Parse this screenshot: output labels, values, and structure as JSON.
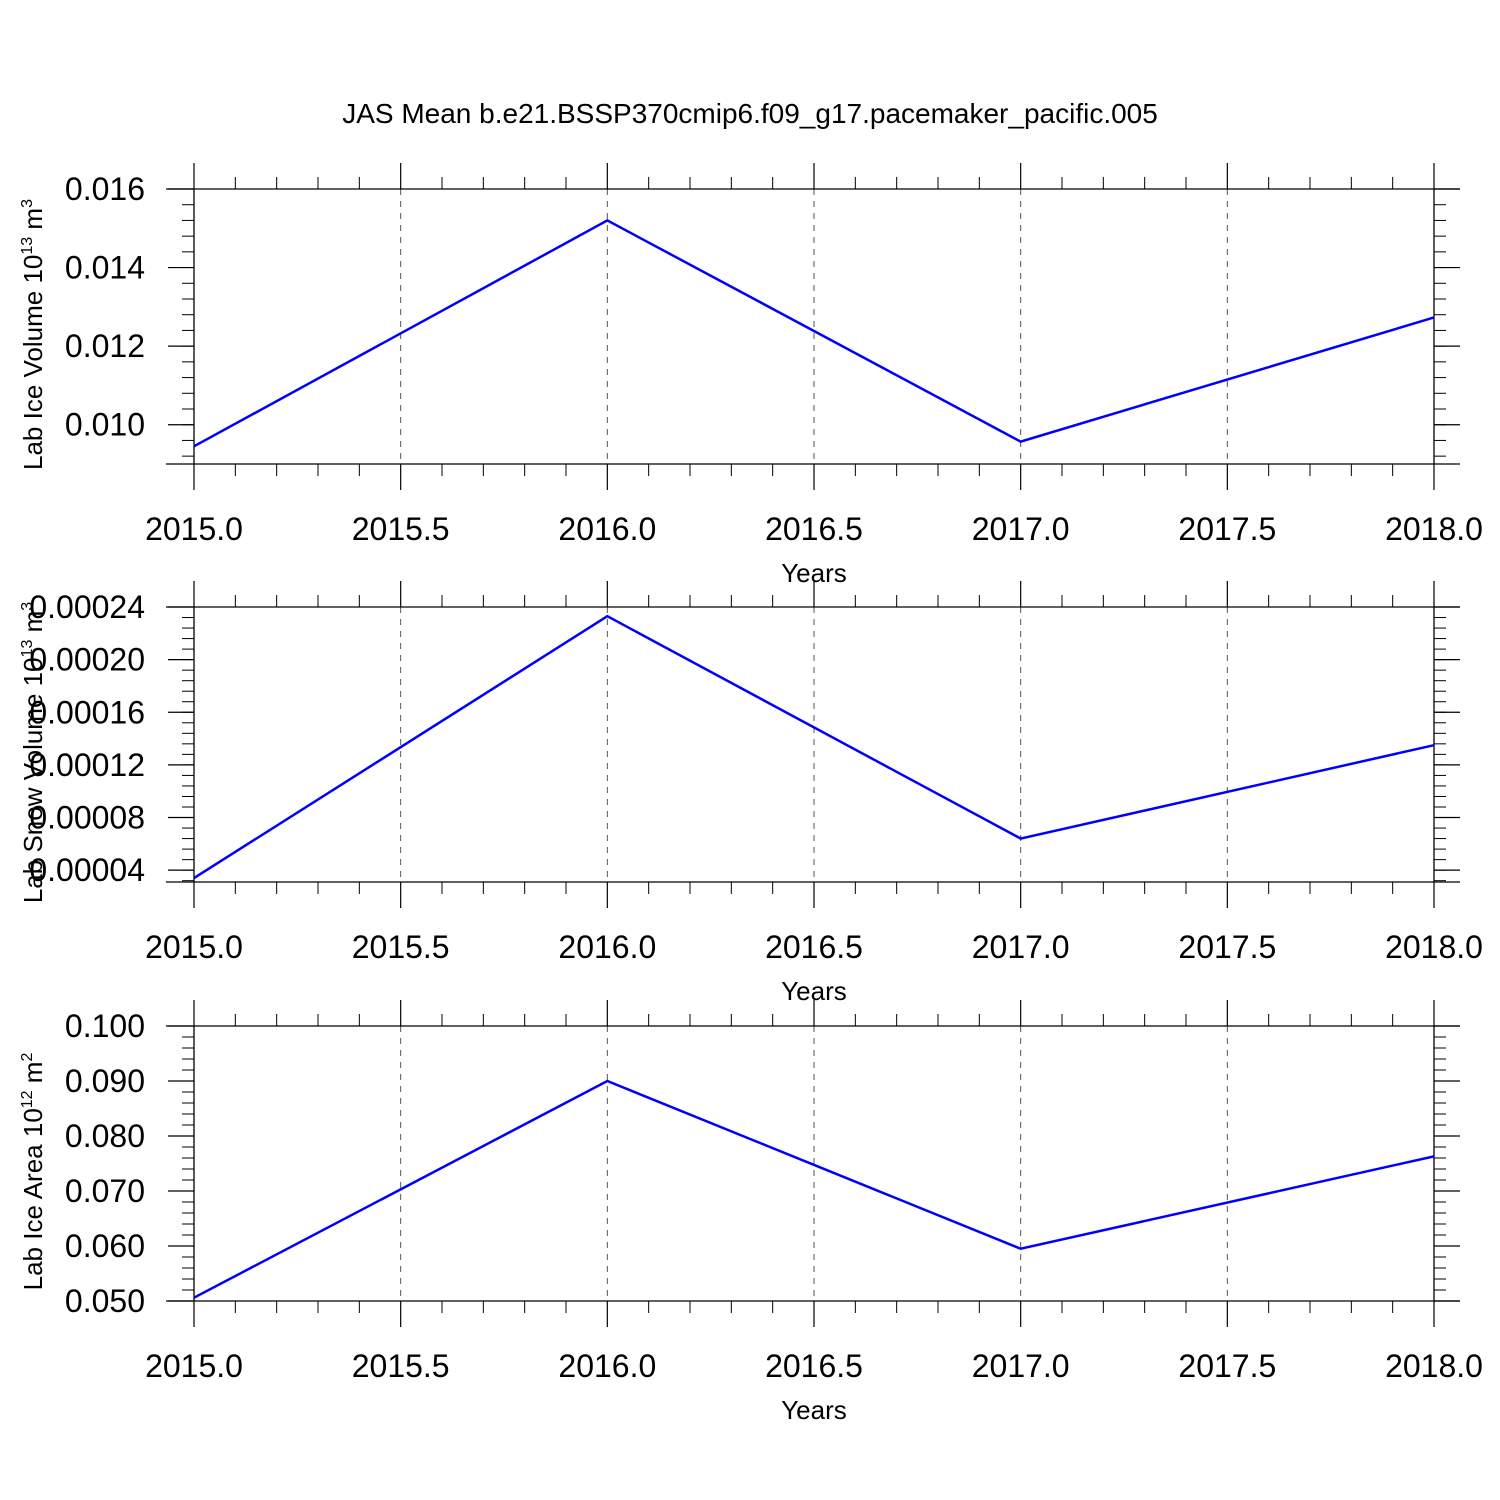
{
  "title": "JAS Mean b.e21.BSSP370cmip6.f09_g17.pacemaker_pacific.005",
  "colors": {
    "line": "#0000ff",
    "axis": "#000000",
    "grid": "#555555"
  },
  "chart_data": [
    {
      "type": "line",
      "xlabel": "Years",
      "ylabel_main": "Lab Ice Volume 10",
      "ylabel_sup": "13",
      "ylabel_unit": " m",
      "ylabel_unit_sup": "3",
      "xlim": [
        2015.0,
        2018.0
      ],
      "ylim": [
        0.009,
        0.016
      ],
      "x_ticks": [
        2015.0,
        2015.5,
        2016.0,
        2016.5,
        2017.0,
        2017.5,
        2018.0
      ],
      "x_tick_labels": [
        "2015.0",
        "2015.5",
        "2016.0",
        "2016.5",
        "2017.0",
        "2017.5",
        "2018.0"
      ],
      "y_ticks": [
        0.01,
        0.012,
        0.014,
        0.016
      ],
      "y_tick_labels": [
        "0.010",
        "0.012",
        "0.014",
        "0.016"
      ],
      "y_minor_step": 0.0004,
      "grid": "vertical dashed",
      "series": [
        {
          "x": [
            2015,
            2016,
            2017,
            2018
          ],
          "values": [
            0.00945,
            0.0152,
            0.00957,
            0.01273
          ]
        }
      ]
    },
    {
      "type": "line",
      "xlabel": "Years",
      "ylabel_main": "Lab Snow Volume 10",
      "ylabel_sup": "13",
      "ylabel_unit": " m",
      "ylabel_unit_sup": "3",
      "xlim": [
        2015.0,
        2018.0
      ],
      "ylim": [
        3.1e-05,
        0.00024
      ],
      "x_ticks": [
        2015.0,
        2015.5,
        2016.0,
        2016.5,
        2017.0,
        2017.5,
        2018.0
      ],
      "x_tick_labels": [
        "2015.0",
        "2015.5",
        "2016.0",
        "2016.5",
        "2017.0",
        "2017.5",
        "2018.0"
      ],
      "y_ticks": [
        4e-05,
        8e-05,
        0.00012,
        0.00016,
        0.0002,
        0.00024
      ],
      "y_tick_labels": [
        "0.00004",
        "0.00008",
        "0.00012",
        "0.00016",
        "0.00020",
        "0.00024"
      ],
      "y_minor_step": 8e-06,
      "grid": "vertical dashed",
      "series": [
        {
          "x": [
            2015,
            2016,
            2017,
            2018
          ],
          "values": [
            3.4e-05,
            0.000233,
            6.4e-05,
            0.000135
          ]
        }
      ]
    },
    {
      "type": "line",
      "xlabel": "Years",
      "ylabel_main": "Lab Ice Area 10",
      "ylabel_sup": "12",
      "ylabel_unit": " m",
      "ylabel_unit_sup": "2",
      "xlim": [
        2015.0,
        2018.0
      ],
      "ylim": [
        0.05,
        0.1
      ],
      "x_ticks": [
        2015.0,
        2015.5,
        2016.0,
        2016.5,
        2017.0,
        2017.5,
        2018.0
      ],
      "x_tick_labels": [
        "2015.0",
        "2015.5",
        "2016.0",
        "2016.5",
        "2017.0",
        "2017.5",
        "2018.0"
      ],
      "y_ticks": [
        0.05,
        0.06,
        0.07,
        0.08,
        0.09,
        0.1
      ],
      "y_tick_labels": [
        "0.050",
        "0.060",
        "0.070",
        "0.080",
        "0.090",
        "0.100"
      ],
      "y_minor_step": 0.002,
      "grid": "vertical dashed",
      "series": [
        {
          "x": [
            2015,
            2016,
            2017,
            2018
          ],
          "values": [
            0.0506,
            0.09,
            0.0595,
            0.0763
          ]
        }
      ]
    }
  ]
}
